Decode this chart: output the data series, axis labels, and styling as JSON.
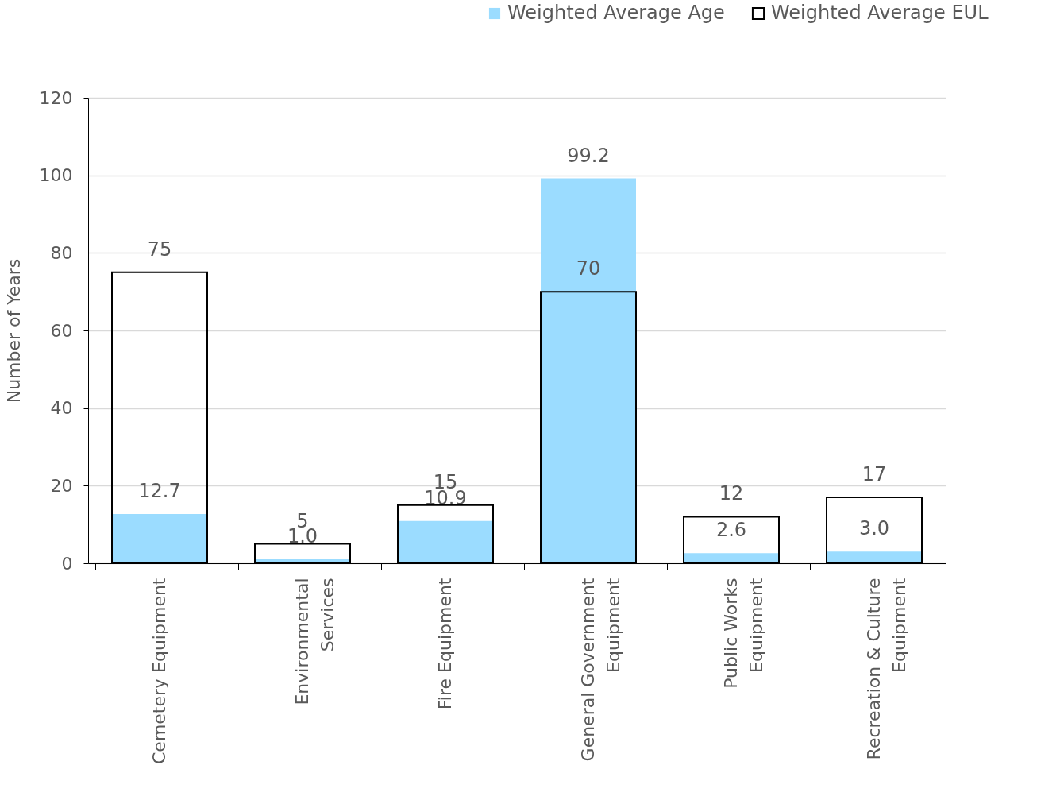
{
  "chart_data": {
    "type": "bar",
    "ylabel": "Number of Years",
    "categories": [
      "Cemetery Equipment",
      "Environmental Services",
      "Fire Equipment",
      "General Government Equipment",
      "Public Works Equipment",
      "Recreation & Culture Equipment"
    ],
    "series": [
      {
        "name": "Weighted Average Age",
        "color": "#9bdcff",
        "values": [
          12.7,
          1.0,
          10.9,
          99.2,
          2.6,
          3.0
        ],
        "value_labels": [
          "12.7",
          "1.0",
          "10.9",
          "99.2",
          "2.6",
          "3.0"
        ]
      },
      {
        "name": "Weighted Average EUL",
        "color": "#000000",
        "values": [
          75,
          5,
          15,
          70,
          12,
          17
        ],
        "value_labels": [
          "75",
          "5",
          "15",
          "70",
          "12",
          "17"
        ]
      }
    ],
    "ylim": [
      0,
      120
    ],
    "yticks": [
      0,
      20,
      40,
      60,
      80,
      100,
      120
    ],
    "grid": "y",
    "legend": "top right"
  }
}
